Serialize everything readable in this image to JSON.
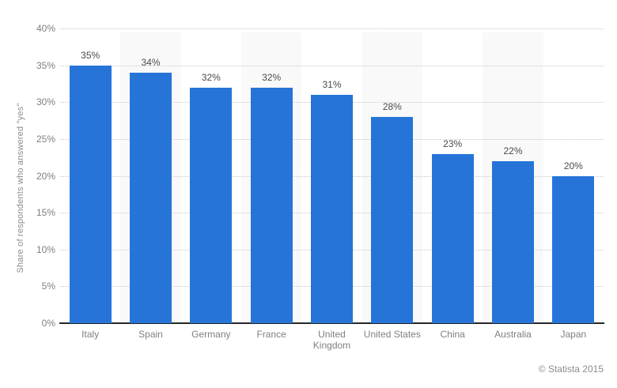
{
  "chart_data": {
    "type": "bar",
    "title": "",
    "xlabel": "",
    "ylabel": "Share of respondents who answered \"yes\"",
    "categories": [
      "Italy",
      "Spain",
      "Germany",
      "France",
      "United Kingdom",
      "United States",
      "China",
      "Australia",
      "Japan"
    ],
    "values": [
      35,
      34,
      32,
      32,
      31,
      28,
      23,
      22,
      20
    ],
    "value_labels": [
      "35%",
      "34%",
      "32%",
      "32%",
      "31%",
      "28%",
      "23%",
      "22%",
      "20%"
    ],
    "y_ticks": [
      "0%",
      "5%",
      "10%",
      "15%",
      "20%",
      "25%",
      "30%",
      "35%",
      "40%"
    ],
    "ylim": [
      0,
      40
    ],
    "tick_step": 5,
    "grid": "horizontal-dotted",
    "legend": "none",
    "bar_color": "#2674d8",
    "stripe_color": "#f9f9f9",
    "gridline_color": "#c9c9c9",
    "axis_line_color": "#262626",
    "tick_label_color": "#7f7f7f",
    "value_label_color": "#4a4a4a"
  },
  "footer": {
    "credit": "© Statista 2015"
  }
}
